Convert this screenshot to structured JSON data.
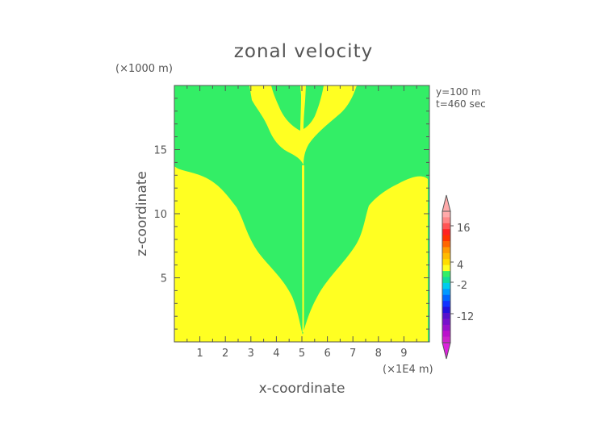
{
  "chart_data": {
    "type": "heatmap",
    "title": "zonal velocity",
    "xlabel": "x-coordinate",
    "ylabel": "z-coordinate",
    "x_unit": "(×1E4 m)",
    "y_unit": "(×1000 m)",
    "annotations": [
      "y=100 m",
      "t=460 sec"
    ],
    "xlim": [
      0,
      10
    ],
    "ylim": [
      0,
      20
    ],
    "x_ticks": [
      1,
      2,
      3,
      4,
      5,
      6,
      7,
      8,
      9
    ],
    "y_ticks": [
      5,
      10,
      15
    ],
    "colorbar": {
      "labels": [
        "16",
        "4",
        "-2",
        "-12"
      ],
      "label_values": [
        16,
        4,
        -2,
        -12
      ]
    },
    "regions": [
      {
        "name": "green",
        "value_range": [
          -2,
          2
        ],
        "color": "#33ee66"
      },
      {
        "name": "yellow",
        "value_range": [
          2,
          6
        ],
        "color": "#ffff22"
      }
    ]
  },
  "colors": {
    "green": "#33ee66",
    "yellow": "#ffff22",
    "text": "#555555"
  }
}
